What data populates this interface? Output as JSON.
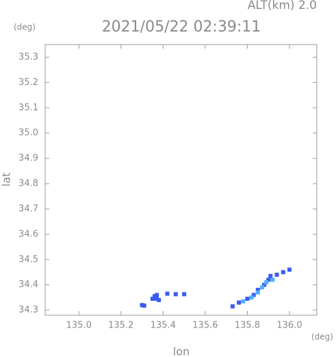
{
  "chart_data": {
    "type": "scatter",
    "title": "2021/05/22 02:39:11",
    "subtitle": "ALT(km) 2.0",
    "y_unit": "(deg)",
    "x_unit": "(deg)",
    "x_label": "lon",
    "y_label": "lat",
    "xlim": [
      134.84,
      136.13
    ],
    "ylim": [
      34.28,
      35.35
    ],
    "xticks": [
      {
        "value": 135.0,
        "label": "135.0"
      },
      135.2,
      135.4,
      135.6,
      135.8,
      {
        "value": 136.0,
        "label": "136.0"
      }
    ],
    "yticks": [
      34.3,
      34.4,
      34.5,
      34.6,
      34.7,
      34.8,
      34.9,
      {
        "value": 35.0,
        "label": "35.0"
      },
      35.1,
      35.2,
      35.3
    ],
    "series": [
      {
        "color": "#3a5cf0",
        "x": [
          135.3,
          135.31,
          135.35,
          135.36,
          135.37,
          135.36,
          135.37,
          135.38,
          135.42,
          135.46,
          135.5,
          135.73,
          135.76,
          135.8,
          135.83,
          135.85,
          135.88,
          135.9,
          135.91,
          135.94,
          135.97,
          136.0
        ],
        "values": [
          34.32,
          34.318,
          34.345,
          34.345,
          34.345,
          34.355,
          34.36,
          34.34,
          34.365,
          34.363,
          34.363,
          34.315,
          34.33,
          34.345,
          34.36,
          34.38,
          34.4,
          34.42,
          34.435,
          34.44,
          34.45,
          34.46
        ]
      },
      {
        "color": "#4fb0ff",
        "x": [
          135.78,
          135.82,
          135.85,
          135.87,
          135.89,
          135.92
        ],
        "values": [
          34.335,
          34.35,
          34.37,
          34.39,
          34.41,
          34.42
        ]
      }
    ]
  }
}
